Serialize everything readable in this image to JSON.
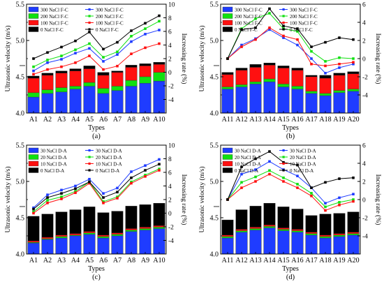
{
  "chart_data": [
    {
      "type": "bar+line",
      "panel_label": "(a)",
      "xlabel": "Types",
      "ylabel": "Ultrasonic velocity (m/s)",
      "y2label": "Increasing rate (%)",
      "categories": [
        "A1",
        "A2",
        "A3",
        "A4",
        "A5",
        "A6",
        "A7",
        "A8",
        "A9",
        "A10"
      ],
      "ylim": [
        4.0,
        5.5
      ],
      "yticks": [
        "4.0",
        "4.5",
        "5.0",
        "5.5"
      ],
      "y2lim": [
        -6,
        10
      ],
      "y2ticks": [
        "-4",
        "-2",
        "0",
        "2",
        "4",
        "6",
        "8",
        "10"
      ],
      "bar_series": [
        {
          "name": "300 NaCl F-C",
          "color": "#1f3cff",
          "values": [
            4.22,
            4.27,
            4.29,
            4.33,
            4.37,
            4.27,
            4.31,
            4.37,
            4.41,
            4.44
          ]
        },
        {
          "name": "200 NaCl F-C",
          "color": "#10e010",
          "values": [
            4.28,
            4.32,
            4.35,
            4.37,
            4.42,
            4.34,
            4.37,
            4.45,
            4.5,
            4.56
          ]
        },
        {
          "name": "100 NaCl F-C",
          "color": "#ff1010",
          "values": [
            4.48,
            4.52,
            4.55,
            4.58,
            4.61,
            4.52,
            4.56,
            4.63,
            4.65,
            4.67
          ]
        },
        {
          "name": "0 NaCl F-C",
          "color": "#000000",
          "values": [
            4.51,
            4.55,
            4.58,
            4.61,
            4.65,
            4.56,
            4.58,
            4.66,
            4.68,
            4.7
          ]
        }
      ],
      "line_series": [
        {
          "name": "300 NaCl F-C",
          "color": "#1f3cff",
          "marker": "square",
          "values": [
            0.2,
            1.4,
            1.9,
            2.8,
            3.5,
            1.6,
            2.6,
            4.5,
            5.6,
            6.2
          ]
        },
        {
          "name": "200 NaCl F-C",
          "color": "#10e010",
          "marker": "square",
          "values": [
            0.8,
            1.8,
            2.4,
            3.3,
            4.2,
            2.2,
            3.0,
            5.3,
            6.4,
            7.5
          ]
        },
        {
          "name": "100 NaCl F-C",
          "color": "#ff1010",
          "marker": "square",
          "values": [
            -0.3,
            0.4,
            0.8,
            1.4,
            2.4,
            0.4,
            0.9,
            2.7,
            3.6,
            4.2
          ]
        },
        {
          "name": "0 NaCl F-C",
          "color": "#000000",
          "marker": "square",
          "values": [
            2.0,
            2.9,
            3.7,
            4.6,
            5.9,
            3.4,
            4.4,
            6.1,
            7.2,
            8.3
          ]
        }
      ],
      "legend_placement": "top-left"
    },
    {
      "type": "bar+line",
      "panel_label": "(b)",
      "xlabel": "Types",
      "ylabel": "Ultrasonic velocity (m/s)",
      "y2label": "Increasing rate (%)",
      "categories": [
        "A11",
        "A12",
        "A13",
        "A14",
        "A15",
        "A16",
        "A17",
        "A18",
        "A19",
        "A20"
      ],
      "ylim": [
        4.0,
        5.5
      ],
      "yticks": [
        "4.0",
        "4.5",
        "5.0",
        "5.5"
      ],
      "y2lim": [
        -6,
        6
      ],
      "y2ticks": [
        "-4",
        "-2",
        "0",
        "2",
        "4",
        "6"
      ],
      "bar_series": [
        {
          "name": "300 NaCl F-C",
          "color": "#1f3cff",
          "values": [
            4.33,
            4.36,
            4.4,
            4.43,
            4.36,
            4.33,
            4.27,
            4.24,
            4.28,
            4.3
          ]
        },
        {
          "name": "200 NaCl F-C",
          "color": "#10e010",
          "values": [
            4.36,
            4.39,
            4.43,
            4.47,
            4.4,
            4.37,
            4.3,
            4.27,
            4.31,
            4.33
          ]
        },
        {
          "name": "100 NaCl F-C",
          "color": "#ff1010",
          "values": [
            4.53,
            4.59,
            4.63,
            4.66,
            4.62,
            4.59,
            4.5,
            4.48,
            4.52,
            4.54
          ]
        },
        {
          "name": "0 NaCl F-C",
          "color": "#000000",
          "values": [
            4.56,
            4.62,
            4.67,
            4.69,
            4.65,
            4.62,
            4.52,
            4.52,
            4.55,
            4.57
          ]
        }
      ],
      "line_series": [
        {
          "name": "300 NaCl F-C",
          "color": "#1f3cff",
          "marker": "square",
          "values": [
            0.0,
            1.5,
            2.2,
            3.2,
            2.3,
            1.5,
            0.0,
            -1.6,
            -1.0,
            -0.6
          ]
        },
        {
          "name": "200 NaCl F-C",
          "color": "#10e010",
          "marker": "square",
          "values": [
            0.0,
            3.3,
            4.4,
            5.0,
            3.3,
            3.0,
            0.8,
            -0.3,
            0.1,
            0.0
          ]
        },
        {
          "name": "100 NaCl F-C",
          "color": "#ff1010",
          "marker": "square",
          "values": [
            0.0,
            1.3,
            2.1,
            3.4,
            2.5,
            2.1,
            -0.6,
            -0.8,
            -0.6,
            -0.4
          ]
        },
        {
          "name": "0 NaCl F-C",
          "color": "#000000",
          "marker": "square",
          "values": [
            0.0,
            3.2,
            3.4,
            5.5,
            3.6,
            3.3,
            1.3,
            1.8,
            2.3,
            2.1
          ]
        }
      ],
      "legend_placement": "top-left"
    },
    {
      "type": "bar+line",
      "panel_label": "(c)",
      "xlabel": "Types",
      "ylabel": "Ultrasonic velocity (m/s)",
      "y2label": "Increasing rate (%)",
      "categories": [
        "A1",
        "A2",
        "A3",
        "A4",
        "A5",
        "A6",
        "A7",
        "A8",
        "A9",
        "A10"
      ],
      "ylim": [
        4.0,
        5.5
      ],
      "yticks": [
        "4.0",
        "4.5",
        "5.0",
        "5.5"
      ],
      "y2lim": [
        -6,
        10
      ],
      "y2ticks": [
        "-4",
        "-2",
        "0",
        "2",
        "4",
        "6",
        "8",
        "10"
      ],
      "bar_series": [
        {
          "name": "30 NaCl D-A",
          "color": "#1f3cff",
          "values": [
            4.15,
            4.2,
            4.22,
            4.25,
            4.27,
            4.22,
            4.25,
            4.31,
            4.33,
            4.35
          ]
        },
        {
          "name": "20 NaCl D-A",
          "color": "#10e010",
          "values": [
            4.16,
            4.21,
            4.24,
            4.26,
            4.29,
            4.24,
            4.27,
            4.33,
            4.35,
            4.37
          ]
        },
        {
          "name": "10 NaCl D-A",
          "color": "#ff1010",
          "values": [
            4.18,
            4.23,
            4.26,
            4.28,
            4.31,
            4.26,
            4.29,
            4.35,
            4.37,
            4.39
          ]
        },
        {
          "name": "0 NaCl D-A",
          "color": "#000000",
          "values": [
            4.52,
            4.55,
            4.58,
            4.61,
            4.65,
            4.57,
            4.59,
            4.66,
            4.68,
            4.7
          ]
        }
      ],
      "line_series": [
        {
          "name": "30 NaCl D-A",
          "color": "#1f3cff",
          "marker": "square",
          "values": [
            0.8,
            2.7,
            3.4,
            4.0,
            5.0,
            2.9,
            3.7,
            6.1,
            7.0,
            7.9
          ]
        },
        {
          "name": "20 NaCl D-A",
          "color": "#10e010",
          "marker": "square",
          "values": [
            0.2,
            1.9,
            2.4,
            3.2,
            4.6,
            1.7,
            2.4,
            4.6,
            5.6,
            6.5
          ]
        },
        {
          "name": "10 NaCl D-A",
          "color": "#ff1010",
          "marker": "square",
          "values": [
            0.0,
            1.5,
            2.1,
            3.0,
            4.4,
            1.5,
            2.2,
            4.4,
            5.4,
            6.3
          ]
        },
        {
          "name": "0 NaCl D-A",
          "color": "#000000",
          "marker": "square",
          "values": [
            0.6,
            2.3,
            2.9,
            3.6,
            4.6,
            2.3,
            3.1,
            5.2,
            6.3,
            7.2
          ]
        }
      ],
      "legend_placement": "top-left"
    },
    {
      "type": "bar+line",
      "panel_label": "(d)",
      "xlabel": "Types",
      "ylabel": "Ultrasonic velocity (m/s)",
      "y2label": "Increasing rate (%)",
      "categories": [
        "A11",
        "A12",
        "A13",
        "A14",
        "A15",
        "A16",
        "A17",
        "A18",
        "A19",
        "A20"
      ],
      "ylim": [
        4.0,
        5.5
      ],
      "yticks": [
        "4.0",
        "4.5",
        "5.0",
        "5.5"
      ],
      "y2lim": [
        -6,
        6
      ],
      "y2ticks": [
        "-4",
        "-2",
        "0",
        "2",
        "4",
        "6"
      ],
      "bar_series": [
        {
          "name": "30 NaCl D-A",
          "color": "#1f3cff",
          "values": [
            4.22,
            4.3,
            4.33,
            4.36,
            4.32,
            4.3,
            4.26,
            4.22,
            4.24,
            4.26
          ]
        },
        {
          "name": "20 NaCl D-A",
          "color": "#10e010",
          "values": [
            4.24,
            4.32,
            4.35,
            4.38,
            4.34,
            4.32,
            4.28,
            4.24,
            4.26,
            4.28
          ]
        },
        {
          "name": "10 NaCl D-A",
          "color": "#ff1010",
          "values": [
            4.26,
            4.34,
            4.37,
            4.4,
            4.36,
            4.34,
            4.3,
            4.26,
            4.28,
            4.3
          ]
        },
        {
          "name": "0 NaCl D-A",
          "color": "#000000",
          "values": [
            4.47,
            4.61,
            4.66,
            4.7,
            4.65,
            4.62,
            4.53,
            4.55,
            4.56,
            4.58
          ]
        }
      ],
      "line_series": [
        {
          "name": "30 NaCl D-A",
          "color": "#1f3cff",
          "marker": "square",
          "values": [
            0.0,
            2.8,
            3.3,
            4.2,
            3.3,
            2.6,
            1.3,
            -0.4,
            0.2,
            0.6
          ]
        },
        {
          "name": "20 NaCl D-A",
          "color": "#10e010",
          "marker": "square",
          "values": [
            0.0,
            1.9,
            2.5,
            3.2,
            2.4,
            1.7,
            0.7,
            -0.8,
            -0.3,
            0.0
          ]
        },
        {
          "name": "10 NaCl D-A",
          "color": "#ff1010",
          "marker": "square",
          "values": [
            0.0,
            1.3,
            2.0,
            2.8,
            2.0,
            1.3,
            0.4,
            -1.2,
            -0.6,
            -0.2
          ]
        },
        {
          "name": "0 NaCl D-A",
          "color": "#000000",
          "marker": "square",
          "values": [
            0.0,
            3.6,
            4.5,
            5.3,
            4.1,
            3.8,
            1.3,
            1.9,
            2.3,
            2.4
          ]
        }
      ],
      "legend_placement": "top-left"
    }
  ]
}
